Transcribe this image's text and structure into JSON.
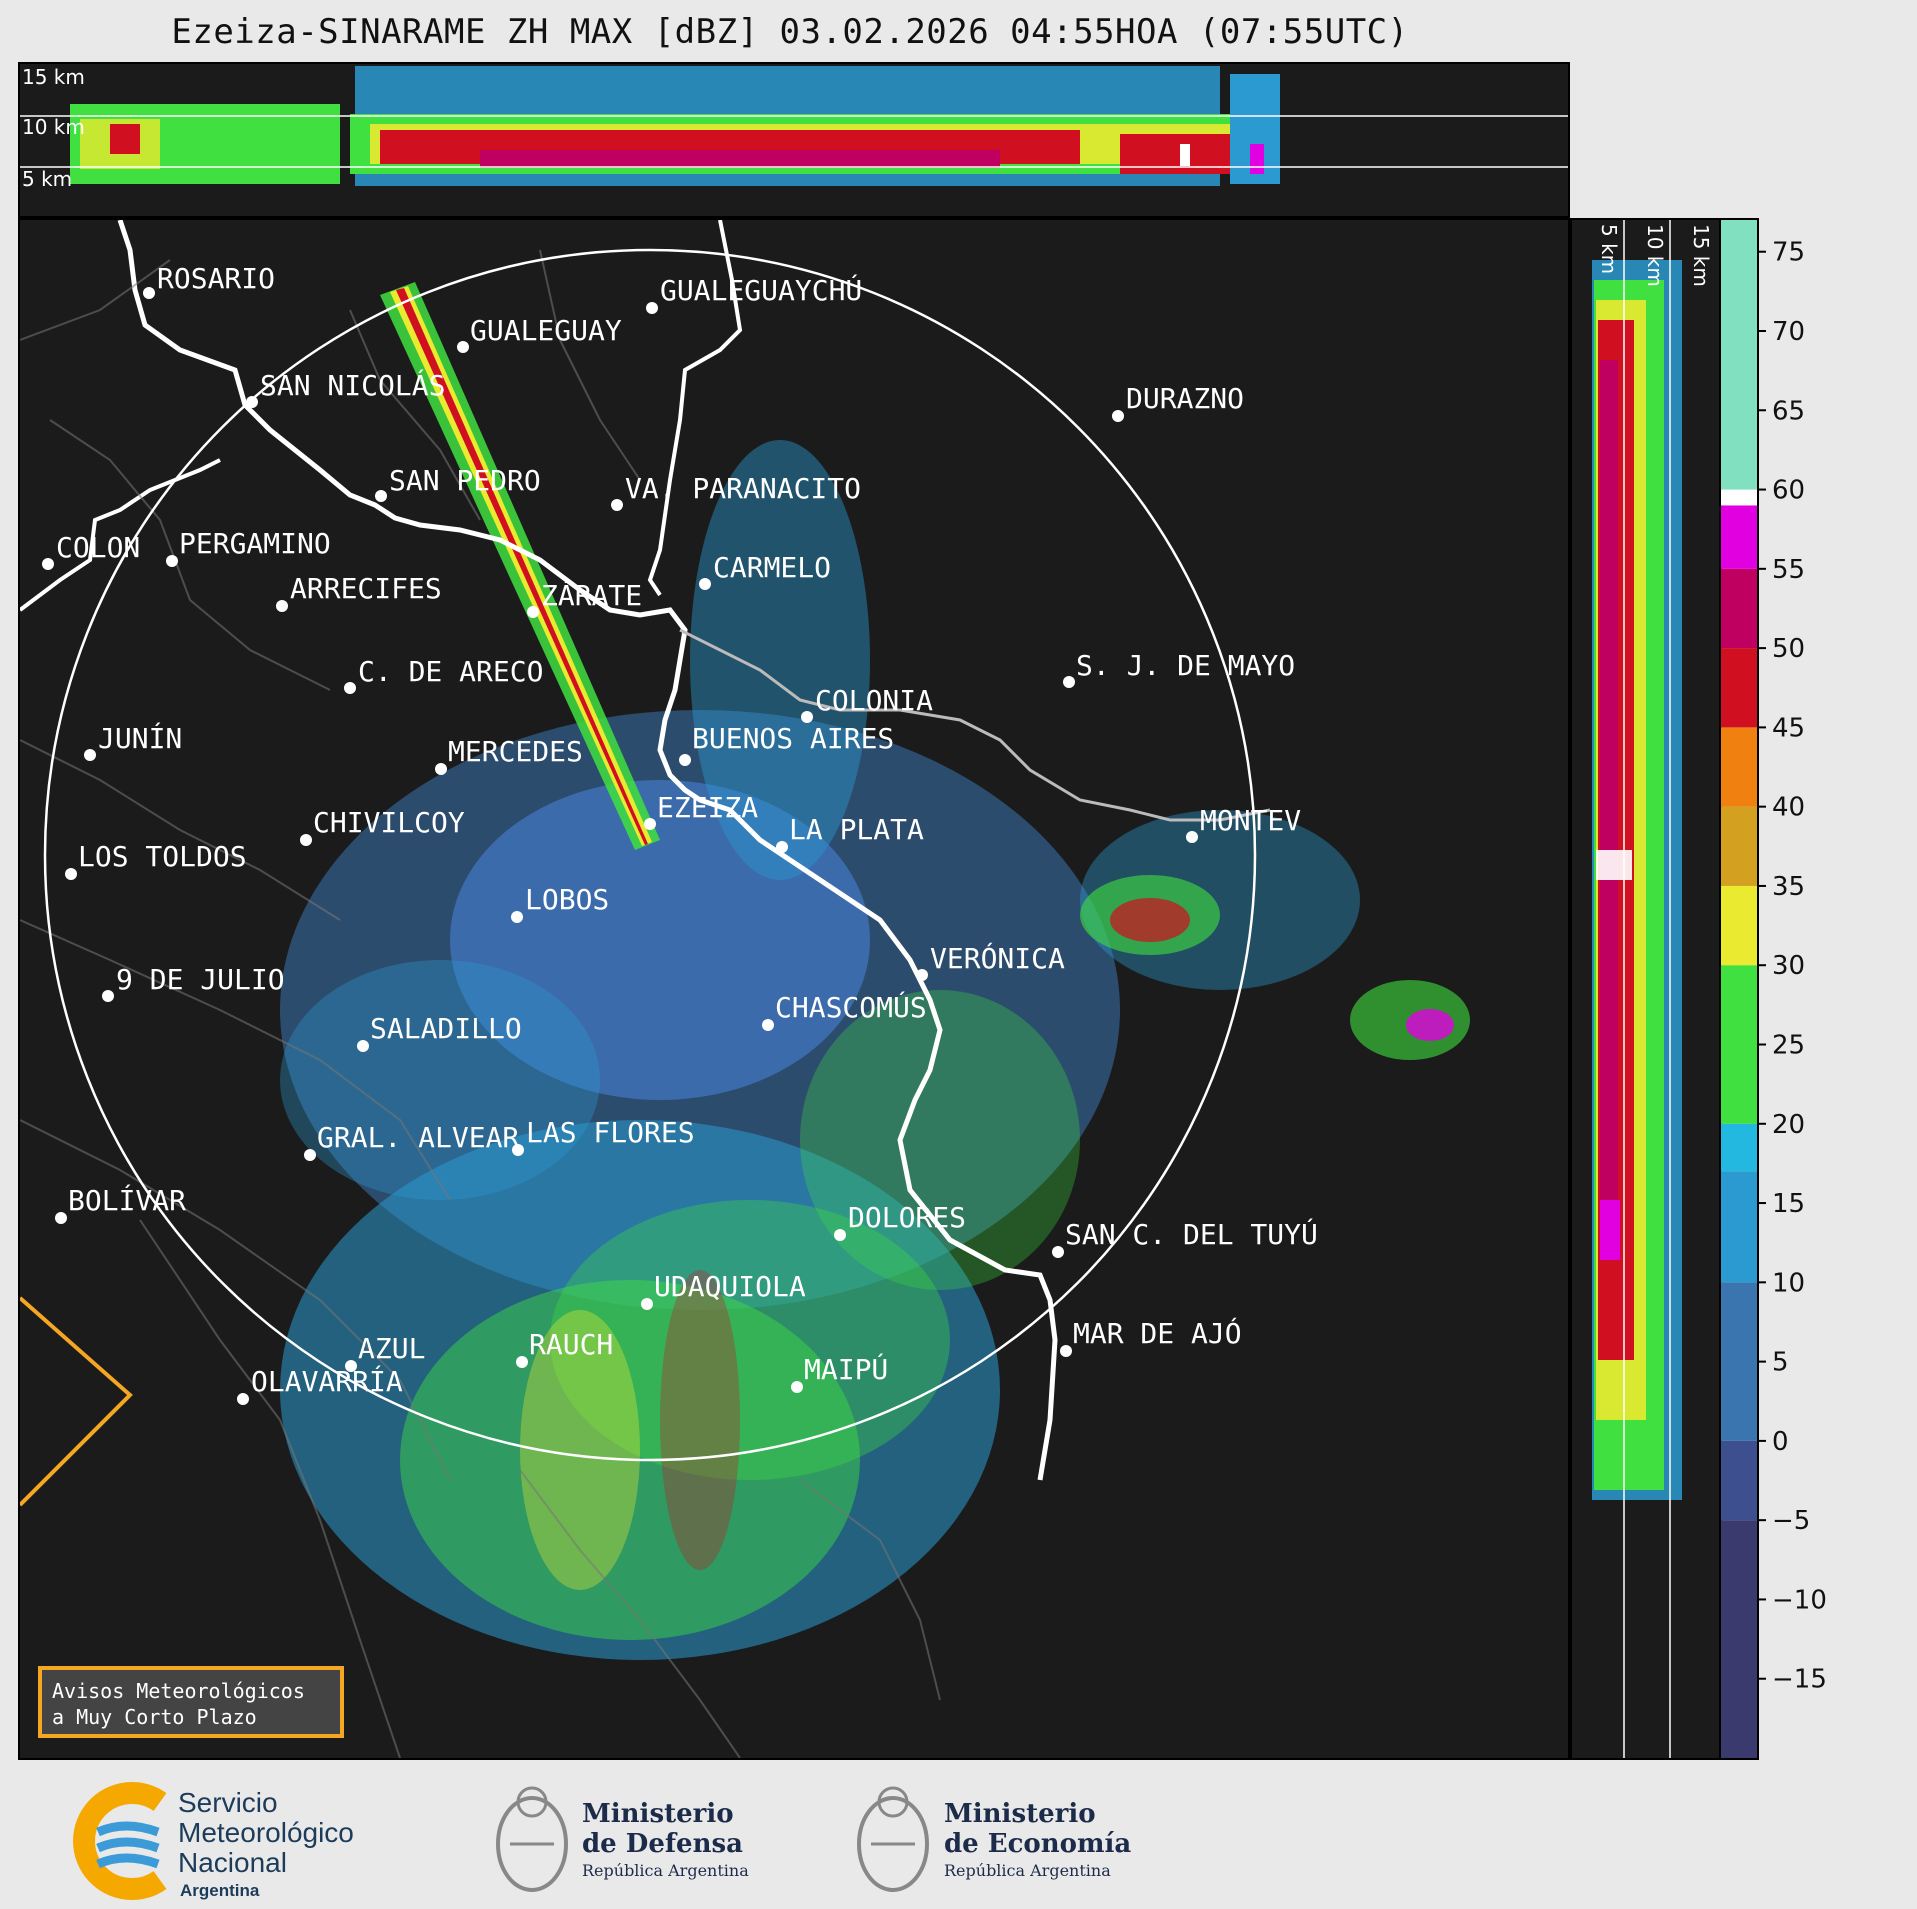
{
  "title": "Ezeiza-SINARAME ZH MAX [dBZ] 03.02.2026 04:55HOA (07:55UTC)",
  "top_panel": {
    "altitude_labels": [
      "15 km",
      "10 km",
      "5 km"
    ]
  },
  "right_panel": {
    "altitude_labels": [
      "5 km",
      "10 km",
      "15 km"
    ]
  },
  "colorbar": {
    "unit": "dBZ",
    "ticks": [
      "75",
      "70",
      "65",
      "60",
      "55",
      "50",
      "45",
      "40",
      "35",
      "30",
      "25",
      "20",
      "15",
      "10",
      "5",
      "0",
      "−5",
      "−10",
      "−15"
    ],
    "range": [
      -20,
      77
    ],
    "colors": {
      "lt_-5": "#3a3a6e",
      "-5_0": "#3d4f8f",
      "0_10": "#3a75b0",
      "10_17": "#2a9ad0",
      "17_20": "#22b8e0",
      "20_30": "#3fe03f",
      "30_35": "#eaea30",
      "35_40": "#d4a020",
      "40_45": "#f08010",
      "45_50": "#d01020",
      "50_55": "#c00060",
      "55_59": "#e000e0",
      "59_60": "#ffffff",
      "60_77": "#80e0c0"
    }
  },
  "map": {
    "cities": [
      {
        "name": "ROSARIO"
      },
      {
        "name": "GUALEGUAYCHÚ"
      },
      {
        "name": "GUALEGUAY"
      },
      {
        "name": "SAN NICOLÁS"
      },
      {
        "name": "DURAZNO"
      },
      {
        "name": "SAN PEDRO"
      },
      {
        "name": "VA. PARANACITO"
      },
      {
        "name": "COLON"
      },
      {
        "name": "PERGAMINO"
      },
      {
        "name": "CARMELO"
      },
      {
        "name": "ARRECIFES"
      },
      {
        "name": "ZÁRATE"
      },
      {
        "name": "S. J. DE MAYO"
      },
      {
        "name": "C. DE ARECO"
      },
      {
        "name": "COLONIA"
      },
      {
        "name": "JUNÍN"
      },
      {
        "name": "MERCEDES"
      },
      {
        "name": "BUENOS AIRES"
      },
      {
        "name": "MONTEV"
      },
      {
        "name": "CHIVILCOY"
      },
      {
        "name": "EZEIZA"
      },
      {
        "name": "LA PLATA"
      },
      {
        "name": "LOS TOLDOS"
      },
      {
        "name": "LOBOS"
      },
      {
        "name": "VERÓNICA"
      },
      {
        "name": "9 DE JULIO"
      },
      {
        "name": "CHASCOMÚS"
      },
      {
        "name": "SALADILLO"
      },
      {
        "name": "GRAL. ALVEAR"
      },
      {
        "name": "LAS FLORES"
      },
      {
        "name": "BOLÍVAR"
      },
      {
        "name": "DOLORES"
      },
      {
        "name": "SAN C. DEL TUYÚ"
      },
      {
        "name": "UDAQUIOLA"
      },
      {
        "name": "MAR DE AJÓ"
      },
      {
        "name": "RAUCH"
      },
      {
        "name": "AZUL"
      },
      {
        "name": "MAIPÚ"
      },
      {
        "name": "OLAVARRÍA"
      }
    ]
  },
  "legend_box": {
    "line1": "Avisos Meteorológicos",
    "line2": "a Muy Corto Plazo"
  },
  "footer": {
    "smn": {
      "line1": "Servicio",
      "line2": "Meteorológico",
      "line3": "Nacional",
      "line4": "Argentina"
    },
    "defensa": {
      "line1": "Ministerio",
      "line2": "de Defensa",
      "line3": "República Argentina"
    },
    "economia": {
      "line1": "Ministerio",
      "line2": "de Economía",
      "line3": "República Argentina"
    }
  }
}
